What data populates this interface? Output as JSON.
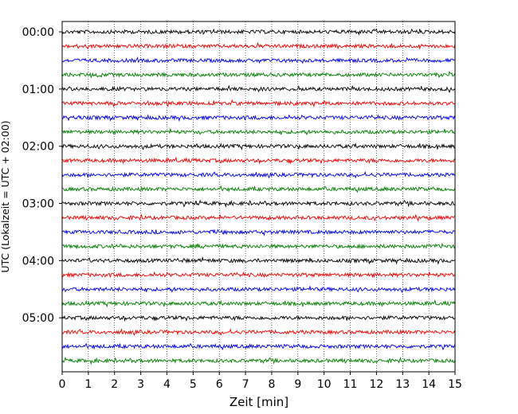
{
  "chart_data": {
    "type": "line",
    "subtype": "helicorder",
    "xlabel": "Zeit  [min]",
    "ylabel": "UTC (Lokalzeit = UTC + 02:00)",
    "xlim": [
      0,
      15
    ],
    "x_ticks": [
      "0",
      "1",
      "2",
      "3",
      "4",
      "5",
      "6",
      "7",
      "8",
      "9",
      "10",
      "11",
      "12",
      "13",
      "14",
      "15"
    ],
    "y_tick_labels": [
      "00:00",
      "01:00",
      "02:00",
      "03:00",
      "04:00",
      "05:00"
    ],
    "grid": "vertical dotted",
    "trace_colors": [
      "#000000",
      "#ff0000",
      "#0000ff",
      "#008000"
    ],
    "rows": [
      {
        "start": "00:00",
        "color": "#000000"
      },
      {
        "start": "00:15",
        "color": "#ff0000"
      },
      {
        "start": "00:30",
        "color": "#0000ff"
      },
      {
        "start": "00:45",
        "color": "#008000"
      },
      {
        "start": "01:00",
        "color": "#000000"
      },
      {
        "start": "01:15",
        "color": "#ff0000"
      },
      {
        "start": "01:30",
        "color": "#0000ff"
      },
      {
        "start": "01:45",
        "color": "#008000"
      },
      {
        "start": "02:00",
        "color": "#000000"
      },
      {
        "start": "02:15",
        "color": "#ff0000"
      },
      {
        "start": "02:30",
        "color": "#0000ff"
      },
      {
        "start": "02:45",
        "color": "#008000"
      },
      {
        "start": "03:00",
        "color": "#000000"
      },
      {
        "start": "03:15",
        "color": "#ff0000"
      },
      {
        "start": "03:30",
        "color": "#0000ff"
      },
      {
        "start": "03:45",
        "color": "#008000"
      },
      {
        "start": "04:00",
        "color": "#000000"
      },
      {
        "start": "04:15",
        "color": "#ff0000"
      },
      {
        "start": "04:30",
        "color": "#0000ff"
      },
      {
        "start": "04:45",
        "color": "#008000"
      },
      {
        "start": "05:00",
        "color": "#000000"
      },
      {
        "start": "05:15",
        "color": "#ff0000"
      },
      {
        "start": "05:30",
        "color": "#0000ff"
      },
      {
        "start": "05:45",
        "color": "#008000"
      }
    ]
  }
}
